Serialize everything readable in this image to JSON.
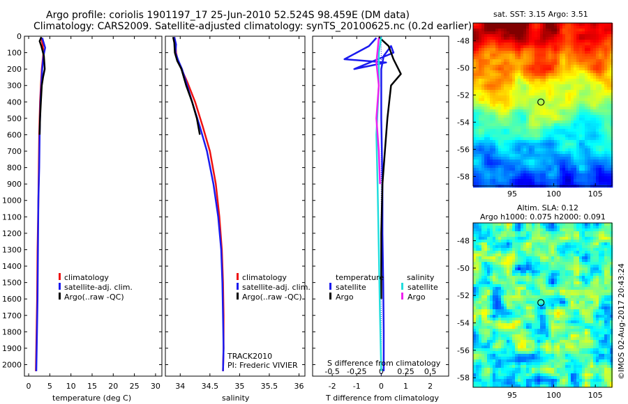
{
  "title": {
    "line1": "Argo profile: coriolis 1901197_17 25-Jun-2010 52.524S 98.459E (DM data)",
    "line2": "Climatology: CARS2009. Satellite-adjusted climatology: synTS_20100625.nc (0.2d earlier)"
  },
  "colors": {
    "climatology": "#ee1111",
    "satellite": "#1a1aee",
    "argo": "#000000",
    "sal_satellite": "#22dddd",
    "sal_argo": "#ee22ee"
  },
  "depth_axis": {
    "ticks": [
      0,
      100,
      200,
      300,
      400,
      500,
      600,
      700,
      800,
      900,
      1000,
      1100,
      1200,
      1300,
      1400,
      1500,
      1600,
      1700,
      1800,
      1900,
      2000
    ]
  },
  "chart_data": [
    {
      "type": "line",
      "xlabel": "temperature (deg C)",
      "xlim": [
        -1,
        31.5
      ],
      "ylim": [
        2070,
        0
      ],
      "xticks": [
        0,
        5,
        10,
        15,
        20,
        25,
        30
      ],
      "legend": [
        "climatology",
        "satellite-adj. clim.",
        "Argo(..raw -QC)"
      ],
      "series": [
        {
          "name": "climatology",
          "color": "#ee1111",
          "points": [
            [
              3.0,
              10
            ],
            [
              3.3,
              50
            ],
            [
              3.5,
              100
            ],
            [
              3.3,
              150
            ],
            [
              3.1,
              200
            ],
            [
              2.9,
              300
            ],
            [
              2.7,
              400
            ],
            [
              2.5,
              600
            ],
            [
              2.4,
              800
            ],
            [
              2.3,
              1000
            ],
            [
              2.1,
              1300
            ],
            [
              2.0,
              1600
            ],
            [
              1.8,
              1900
            ],
            [
              1.7,
              2040
            ]
          ]
        },
        {
          "name": "satellite-adj. clim.",
          "color": "#1a1aee",
          "points": [
            [
              3.2,
              10
            ],
            [
              3.9,
              70
            ],
            [
              3.5,
              120
            ],
            [
              3.2,
              200
            ],
            [
              3.0,
              300
            ],
            [
              2.8,
              400
            ],
            [
              2.6,
              600
            ],
            [
              2.5,
              800
            ],
            [
              2.3,
              1000
            ],
            [
              2.2,
              1300
            ],
            [
              2.1,
              1600
            ],
            [
              1.9,
              1900
            ],
            [
              1.8,
              2040
            ]
          ]
        },
        {
          "name": "Argo(..raw -QC)",
          "color": "#000000",
          "points": [
            [
              3.0,
              5
            ],
            [
              2.6,
              30
            ],
            [
              3.0,
              60
            ],
            [
              3.6,
              120
            ],
            [
              3.8,
              200
            ],
            [
              3.4,
              250
            ],
            [
              3.1,
              300
            ],
            [
              2.9,
              400
            ],
            [
              2.7,
              500
            ],
            [
              2.6,
              600
            ]
          ]
        }
      ]
    },
    {
      "type": "line",
      "xlabel": "salinity",
      "xlim": [
        33.75,
        36.1
      ],
      "ylim": [
        2070,
        0
      ],
      "xticks": [
        34,
        34.5,
        35,
        35.5,
        36
      ],
      "legend": [
        "climatology",
        "satellite-adj. clim.",
        "Argo(..raw -QC)"
      ],
      "annotation": [
        "TRACK2010",
        "PI: Frederic VIVIER"
      ],
      "series": [
        {
          "name": "climatology",
          "color": "#ee1111",
          "points": [
            [
              33.9,
              5
            ],
            [
              33.92,
              40
            ],
            [
              33.93,
              100
            ],
            [
              33.96,
              150
            ],
            [
              34.02,
              200
            ],
            [
              34.12,
              280
            ],
            [
              34.25,
              400
            ],
            [
              34.38,
              550
            ],
            [
              34.5,
              700
            ],
            [
              34.6,
              900
            ],
            [
              34.66,
              1100
            ],
            [
              34.7,
              1300
            ],
            [
              34.72,
              1500
            ],
            [
              34.73,
              1700
            ],
            [
              34.73,
              1900
            ],
            [
              34.72,
              2040
            ]
          ]
        },
        {
          "name": "satellite-adj. clim.",
          "color": "#1a1aee",
          "points": [
            [
              33.9,
              5
            ],
            [
              33.93,
              50
            ],
            [
              33.92,
              100
            ],
            [
              33.97,
              150
            ],
            [
              34.03,
              200
            ],
            [
              34.1,
              280
            ],
            [
              34.2,
              400
            ],
            [
              34.33,
              550
            ],
            [
              34.45,
              700
            ],
            [
              34.56,
              900
            ],
            [
              34.64,
              1100
            ],
            [
              34.69,
              1300
            ],
            [
              34.71,
              1500
            ],
            [
              34.72,
              1700
            ],
            [
              34.73,
              1900
            ],
            [
              34.72,
              2040
            ]
          ]
        },
        {
          "name": "Argo(..raw -QC)",
          "color": "#000000",
          "points": [
            [
              33.88,
              5
            ],
            [
              33.9,
              40
            ],
            [
              33.91,
              100
            ],
            [
              33.95,
              150
            ],
            [
              34.02,
              200
            ],
            [
              34.1,
              300
            ],
            [
              34.2,
              400
            ],
            [
              34.28,
              500
            ],
            [
              34.33,
              600
            ]
          ]
        }
      ]
    },
    {
      "type": "line",
      "xlabel": "T difference from climatology",
      "xlabel_top": "S difference from climatology",
      "xlim": [
        -2.8,
        2.75
      ],
      "ylim": [
        2070,
        0
      ],
      "xticks": [
        -2,
        -1,
        0,
        1,
        2
      ],
      "xticks_top": [
        "-0.5",
        "-0.25",
        "0",
        "0.25",
        "0.5"
      ],
      "legend": {
        "temperature": [
          "satellite",
          "Argo"
        ],
        "salinity": [
          "satellite",
          "Argo"
        ]
      },
      "series": [
        {
          "name": "temperature satellite",
          "color": "#1a1aee",
          "points": [
            [
              -0.2,
              10
            ],
            [
              -0.5,
              60
            ],
            [
              -1.5,
              140
            ],
            [
              0.2,
              160
            ],
            [
              -1.1,
              200
            ],
            [
              0.5,
              100
            ],
            [
              0.4,
              60
            ],
            [
              0.1,
              120
            ],
            [
              0,
              200
            ],
            [
              0,
              500
            ],
            [
              0.05,
              900
            ],
            [
              0.05,
              1200
            ],
            [
              0.08,
              1500
            ],
            [
              0.1,
              1800
            ],
            [
              0.1,
              2040
            ]
          ]
        },
        {
          "name": "temperature Argo",
          "color": "#000000",
          "points": [
            [
              -0.1,
              5
            ],
            [
              0.3,
              60
            ],
            [
              0.5,
              140
            ],
            [
              0.8,
              230
            ],
            [
              0.4,
              300
            ],
            [
              0.25,
              500
            ],
            [
              0.15,
              700
            ],
            [
              0.05,
              900
            ],
            [
              0,
              1200
            ],
            [
              0,
              1600
            ]
          ]
        },
        {
          "name": "salinity satellite",
          "color": "#22dddd",
          "points": [
            [
              0,
              5
            ],
            [
              -0.1,
              100
            ],
            [
              -0.1,
              300
            ],
            [
              -0.2,
              600
            ],
            [
              -0.15,
              900
            ],
            [
              -0.1,
              1300
            ],
            [
              -0.05,
              1700
            ],
            [
              0,
              2040
            ]
          ]
        },
        {
          "name": "salinity Argo",
          "color": "#ee22ee",
          "points": [
            [
              -0.1,
              10
            ],
            [
              -0.2,
              160
            ],
            [
              -0.1,
              300
            ],
            [
              -0.2,
              500
            ],
            [
              -0.1,
              700
            ],
            [
              -0.05,
              900
            ]
          ]
        }
      ]
    },
    {
      "type": "heatmap",
      "title": "sat. SST: 3.15 Argo: 3.51",
      "xticks": [
        95,
        100,
        105
      ],
      "yticks": [
        -48,
        -50,
        -52,
        -54,
        -56,
        -58
      ],
      "xlim": [
        90.3,
        107
      ],
      "ylim": [
        -58.7,
        -46.7
      ],
      "marker": [
        98.459,
        -52.524
      ]
    },
    {
      "type": "heatmap",
      "title": "Altim. SLA: 0.12",
      "subtitle": "Argo h1000: 0.075 h2000: 0.091",
      "xticks": [
        95,
        100,
        105
      ],
      "yticks": [
        -48,
        -50,
        -52,
        -54,
        -56,
        -58
      ],
      "xlim": [
        90.3,
        107
      ],
      "ylim": [
        -58.7,
        -46.7
      ],
      "marker": [
        98.459,
        -52.524
      ]
    }
  ],
  "side_label": "©IMOS 02-Aug-2017 20:43:24"
}
